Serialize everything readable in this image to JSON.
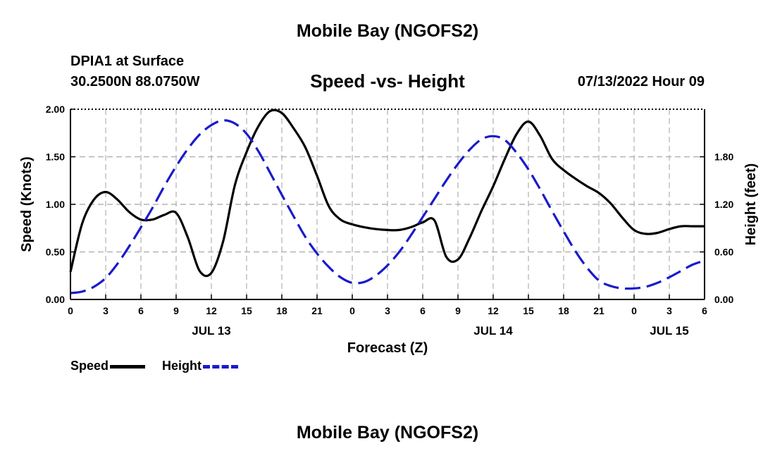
{
  "header": {
    "title": "Mobile Bay (NGOFS2)",
    "station": "DPIA1 at Surface",
    "coords": "30.2500N  88.0750W",
    "subtitle": "Speed -vs- Height",
    "datetime": "07/13/2022 Hour 09"
  },
  "footer": {
    "title": "Mobile Bay (NGOFS2)"
  },
  "legend": {
    "speed_label": "Speed",
    "height_label": "Height"
  },
  "colors": {
    "speed": "#000000",
    "height": "#1a1acc",
    "grid": "#b0b0b0"
  },
  "chart_data": {
    "type": "line",
    "xlabel": "Forecast (Z)",
    "ylabel_left": "Speed (Knots)",
    "ylabel_right": "Height (feet)",
    "xlim": [
      0,
      54
    ],
    "ylim_left": [
      0,
      2.0
    ],
    "ylim_right": [
      0,
      2.4
    ],
    "x_tick_labels": [
      "0",
      "3",
      "6",
      "9",
      "12",
      "15",
      "18",
      "21",
      "0",
      "3",
      "6",
      "9",
      "12",
      "15",
      "18",
      "21",
      "0",
      "3",
      "6"
    ],
    "y_ticks_left": [
      0.0,
      0.5,
      1.0,
      1.5,
      2.0
    ],
    "y_tick_labels_left": [
      "0.00",
      "0.50",
      "1.00",
      "1.50",
      "2.00"
    ],
    "y_ticks_right": [
      0.0,
      0.6,
      1.2,
      1.8
    ],
    "y_tick_labels_right": [
      "0.00",
      "0.60",
      "1.20",
      "1.80"
    ],
    "date_labels": [
      {
        "x": 12,
        "label": "JUL 13"
      },
      {
        "x": 36,
        "label": "JUL 14"
      },
      {
        "x": 51,
        "label": "JUL 15"
      }
    ],
    "grid": true,
    "series": [
      {
        "name": "Speed",
        "axis": "left",
        "x": [
          0,
          1,
          2,
          3,
          4,
          5,
          6,
          7,
          8,
          9,
          10,
          11,
          12,
          13,
          14,
          15,
          16,
          17,
          18,
          19,
          20,
          21,
          22,
          23,
          24,
          25,
          26,
          27,
          28,
          29,
          30,
          31,
          32,
          33,
          34,
          35,
          36,
          37,
          38,
          39,
          40,
          41,
          42,
          43,
          44,
          45,
          46,
          47,
          48,
          49,
          50,
          51,
          52,
          53,
          54
        ],
        "values": [
          0.29,
          0.8,
          1.05,
          1.13,
          1.05,
          0.92,
          0.84,
          0.84,
          0.89,
          0.91,
          0.65,
          0.3,
          0.28,
          0.61,
          1.2,
          1.55,
          1.82,
          1.98,
          1.96,
          1.8,
          1.6,
          1.3,
          0.98,
          0.84,
          0.79,
          0.76,
          0.74,
          0.73,
          0.73,
          0.76,
          0.81,
          0.83,
          0.45,
          0.42,
          0.65,
          0.93,
          1.19,
          1.48,
          1.74,
          1.87,
          1.72,
          1.48,
          1.36,
          1.27,
          1.19,
          1.12,
          1.01,
          0.86,
          0.73,
          0.69,
          0.7,
          0.74,
          0.77,
          0.77,
          0.77
        ]
      },
      {
        "name": "Height",
        "axis": "right",
        "x": [
          0,
          1,
          2,
          3,
          4,
          5,
          6,
          7,
          8,
          9,
          10,
          11,
          12,
          13,
          14,
          15,
          16,
          17,
          18,
          19,
          20,
          21,
          22,
          23,
          24,
          25,
          26,
          27,
          28,
          29,
          30,
          31,
          32,
          33,
          34,
          35,
          36,
          37,
          38,
          39,
          40,
          41,
          42,
          43,
          44,
          45,
          46,
          47,
          48,
          49,
          50,
          51,
          52,
          53,
          54
        ],
        "values": [
          0.08,
          0.1,
          0.16,
          0.27,
          0.45,
          0.67,
          0.91,
          1.16,
          1.43,
          1.68,
          1.9,
          2.08,
          2.2,
          2.26,
          2.22,
          2.09,
          1.87,
          1.6,
          1.32,
          1.05,
          0.79,
          0.58,
          0.41,
          0.28,
          0.21,
          0.22,
          0.3,
          0.43,
          0.6,
          0.81,
          1.04,
          1.27,
          1.5,
          1.71,
          1.89,
          2.02,
          2.06,
          2.01,
          1.85,
          1.64,
          1.39,
          1.12,
          0.86,
          0.61,
          0.4,
          0.24,
          0.17,
          0.14,
          0.14,
          0.16,
          0.21,
          0.28,
          0.36,
          0.44,
          0.49
        ]
      }
    ]
  }
}
